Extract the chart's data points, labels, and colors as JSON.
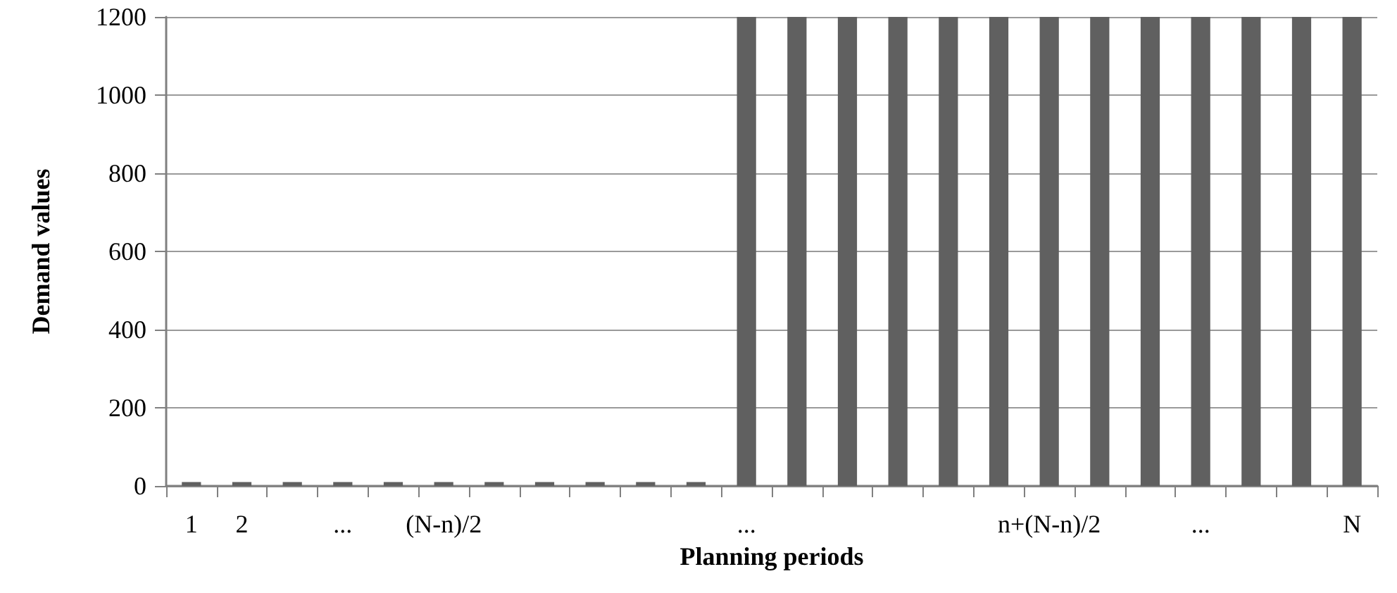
{
  "chart_data": {
    "type": "bar",
    "xlabel": "Planning periods",
    "ylabel": "Demand values",
    "categories": [
      "1",
      "2",
      null,
      "...",
      null,
      "(N-n)/2",
      null,
      null,
      null,
      null,
      null,
      "...",
      null,
      null,
      null,
      null,
      null,
      "n+(N-n)/2",
      null,
      null,
      "...",
      null,
      null,
      "N"
    ],
    "values": [
      10,
      10,
      10,
      10,
      10,
      10,
      10,
      10,
      10,
      10,
      10,
      1200,
      1200,
      1200,
      1200,
      1200,
      1200,
      1200,
      1200,
      1200,
      1200,
      1200,
      1200,
      1200
    ],
    "color": "#606060",
    "ylim": [
      0,
      1200
    ],
    "yticks": [
      0,
      200,
      400,
      600,
      800,
      1000,
      1200
    ],
    "grid": "y"
  }
}
